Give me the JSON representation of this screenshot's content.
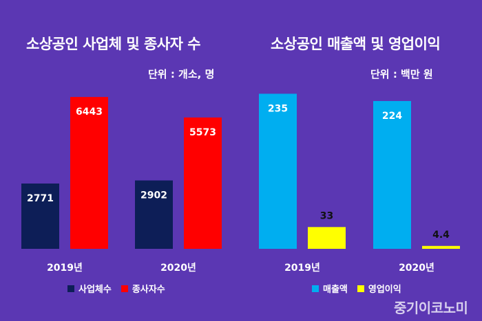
{
  "chart_data": [
    {
      "type": "bar",
      "title": "소상공인 사업체 및 종사자 수",
      "unit": "단위 : 개소, 명",
      "categories": [
        "2019년",
        "2020년"
      ],
      "series": [
        {
          "name": "사업체수",
          "values": [
            2771,
            2902
          ],
          "color": "#0d1e57"
        },
        {
          "name": "종사자수",
          "values": [
            6443,
            5573
          ],
          "color": "#ff0000"
        }
      ],
      "value_labels": [
        [
          "2771",
          "2902"
        ],
        [
          "6443",
          "5573"
        ]
      ],
      "ylim": [
        0,
        7000
      ],
      "grid": false,
      "legend_position": "bottom-center"
    },
    {
      "type": "bar",
      "title": "소상공인 매출액 및 영업이익",
      "unit": "단위 : 백만 원",
      "categories": [
        "2019년",
        "2020년"
      ],
      "series": [
        {
          "name": "매출액",
          "values": [
            235,
            224
          ],
          "color": "#00aef0"
        },
        {
          "name": "영업이익",
          "values": [
            33,
            4.4
          ],
          "color": "#ffff00"
        }
      ],
      "value_labels": [
        [
          "235",
          "224"
        ],
        [
          "33",
          "4.4"
        ]
      ],
      "ylim": [
        0,
        250
      ],
      "grid": false,
      "legend_position": "bottom-center"
    }
  ],
  "watermark": "중기이코노미"
}
